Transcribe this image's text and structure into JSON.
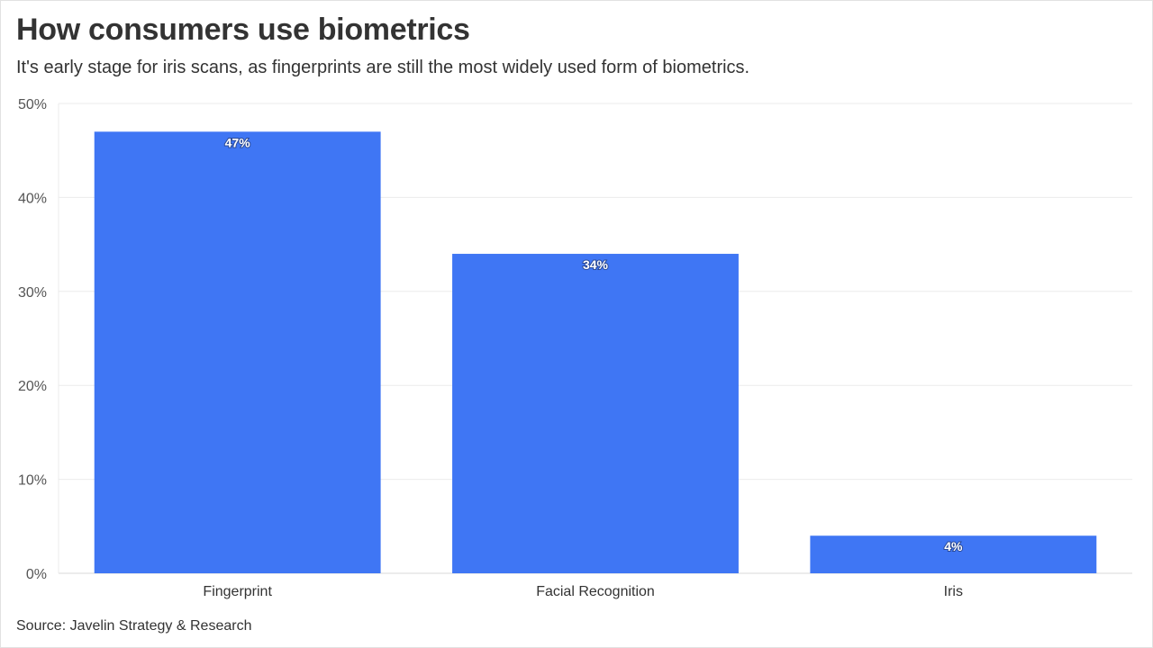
{
  "header": {
    "title": "How consumers use biometrics",
    "subtitle": "It's early stage for iris scans, as fingerprints are still the most widely used form of biometrics."
  },
  "footer": {
    "source": "Source: Javelin Strategy & Research"
  },
  "colors": {
    "bar": "#3f76f4",
    "grid": "#ebebeb",
    "axis": "#d9d9d9"
  },
  "chart_data": {
    "type": "bar",
    "categories": [
      "Fingerprint",
      "Facial Recognition",
      "Iris"
    ],
    "values": [
      47,
      34,
      4
    ],
    "data_labels": [
      "47%",
      "34%",
      "4%"
    ],
    "title": "How consumers use biometrics",
    "subtitle": "It's early stage for iris scans, as fingerprints are still the most widely used form of biometrics.",
    "xlabel": "",
    "ylabel": "",
    "ylim": [
      0,
      50
    ],
    "yticks": [
      0,
      10,
      20,
      30,
      40,
      50
    ],
    "ytick_labels": [
      "0%",
      "10%",
      "20%",
      "30%",
      "40%",
      "50%"
    ],
    "grid": true,
    "legend": "none"
  }
}
